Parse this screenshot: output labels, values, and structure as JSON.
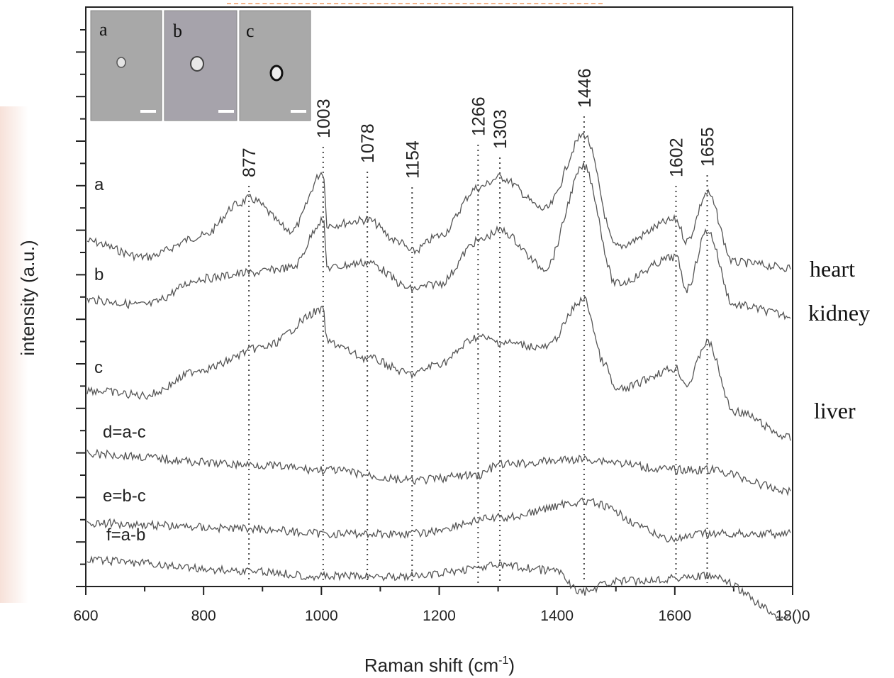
{
  "chart_data": {
    "type": "line",
    "xlabel": "Raman shift (cm",
    "xlabel_sup": "-1",
    "xlabel_close": ")",
    "ylabel": "intensity (a.u.)",
    "xlim": [
      600,
      1800
    ],
    "x_ticks": [
      {
        "value": 600,
        "label": "600"
      },
      {
        "value": 800,
        "label": "800"
      },
      {
        "value": 1000,
        "label": "1000"
      },
      {
        "value": 1200,
        "label": "1200"
      },
      {
        "value": 1400,
        "label": "1400"
      },
      {
        "value": 1600,
        "label": "1600"
      },
      {
        "value": 1800,
        "label": "18()0"
      }
    ],
    "peaks": [
      {
        "value": 877,
        "label": "877"
      },
      {
        "value": 1003,
        "label": "1003"
      },
      {
        "value": 1078,
        "label": "1078"
      },
      {
        "value": 1154,
        "label": "1154"
      },
      {
        "value": 1266,
        "label": "1266"
      },
      {
        "value": 1303,
        "label": "1303"
      },
      {
        "value": 1446,
        "label": "1446"
      },
      {
        "value": 1602,
        "label": "1602"
      },
      {
        "value": 1655,
        "label": "1655"
      }
    ],
    "series": [
      {
        "name": "a",
        "tissue": "heart",
        "points": [
          [
            600,
            8.2
          ],
          [
            700,
            7.9
          ],
          [
            800,
            8.3
          ],
          [
            860,
            8.9
          ],
          [
            877,
            9.0
          ],
          [
            950,
            8.4
          ],
          [
            1003,
            9.5
          ],
          [
            1010,
            8.5
          ],
          [
            1078,
            8.6
          ],
          [
            1130,
            8.2
          ],
          [
            1154,
            8.0
          ],
          [
            1200,
            8.3
          ],
          [
            1266,
            9.2
          ],
          [
            1303,
            9.4
          ],
          [
            1380,
            8.8
          ],
          [
            1446,
            10.2
          ],
          [
            1500,
            8.1
          ],
          [
            1602,
            8.6
          ],
          [
            1620,
            8.2
          ],
          [
            1655,
            9.1
          ],
          [
            1700,
            7.8
          ],
          [
            1800,
            7.7
          ]
        ]
      },
      {
        "name": "b",
        "tissue": "kidney",
        "points": [
          [
            600,
            7.1
          ],
          [
            700,
            7.0
          ],
          [
            800,
            7.5
          ],
          [
            877,
            7.6
          ],
          [
            950,
            7.7
          ],
          [
            1003,
            8.6
          ],
          [
            1010,
            7.7
          ],
          [
            1078,
            7.8
          ],
          [
            1154,
            7.3
          ],
          [
            1200,
            7.4
          ],
          [
            1266,
            8.2
          ],
          [
            1303,
            8.4
          ],
          [
            1380,
            7.7
          ],
          [
            1446,
            9.6
          ],
          [
            1500,
            7.4
          ],
          [
            1602,
            7.9
          ],
          [
            1620,
            7.3
          ],
          [
            1655,
            8.4
          ],
          [
            1700,
            7.0
          ],
          [
            1800,
            6.8
          ]
        ]
      },
      {
        "name": "c",
        "tissue": "liver",
        "points": [
          [
            600,
            5.4
          ],
          [
            700,
            5.3
          ],
          [
            800,
            5.8
          ],
          [
            900,
            6.2
          ],
          [
            1003,
            6.9
          ],
          [
            1010,
            6.3
          ],
          [
            1078,
            6.0
          ],
          [
            1154,
            5.7
          ],
          [
            1200,
            5.9
          ],
          [
            1266,
            6.4
          ],
          [
            1303,
            6.3
          ],
          [
            1380,
            6.2
          ],
          [
            1446,
            7.1
          ],
          [
            1480,
            5.9
          ],
          [
            1500,
            5.4
          ],
          [
            1602,
            5.8
          ],
          [
            1620,
            5.5
          ],
          [
            1655,
            6.3
          ],
          [
            1700,
            5.0
          ],
          [
            1800,
            4.5
          ]
        ]
      },
      {
        "name": "d=a-c",
        "points": [
          [
            600,
            4.2
          ],
          [
            877,
            4.0
          ],
          [
            1003,
            3.9
          ],
          [
            1154,
            3.7
          ],
          [
            1266,
            3.8
          ],
          [
            1303,
            4.0
          ],
          [
            1446,
            4.1
          ],
          [
            1602,
            3.9
          ],
          [
            1655,
            3.9
          ],
          [
            1800,
            3.5
          ]
        ]
      },
      {
        "name": "e=b-c",
        "points": [
          [
            600,
            2.9
          ],
          [
            877,
            2.8
          ],
          [
            1003,
            2.7
          ],
          [
            1154,
            2.7
          ],
          [
            1303,
            3.0
          ],
          [
            1446,
            3.3
          ],
          [
            1602,
            2.6
          ],
          [
            1655,
            2.7
          ],
          [
            1800,
            2.7
          ]
        ]
      },
      {
        "name": "f=a-b",
        "points": [
          [
            600,
            2.2
          ],
          [
            877,
            2.0
          ],
          [
            1003,
            1.9
          ],
          [
            1154,
            1.9
          ],
          [
            1303,
            2.1
          ],
          [
            1400,
            2.0
          ],
          [
            1440,
            1.6
          ],
          [
            1500,
            1.8
          ],
          [
            1655,
            1.9
          ],
          [
            1800,
            1.1
          ]
        ]
      }
    ],
    "series_labels": [
      "a",
      "b",
      "c",
      "d=a-c",
      "e=b-c",
      "f=a-b"
    ],
    "tissue_labels": [
      "heart",
      "kidney",
      "liver"
    ],
    "inset_panels": [
      "a",
      "b",
      "c"
    ]
  }
}
